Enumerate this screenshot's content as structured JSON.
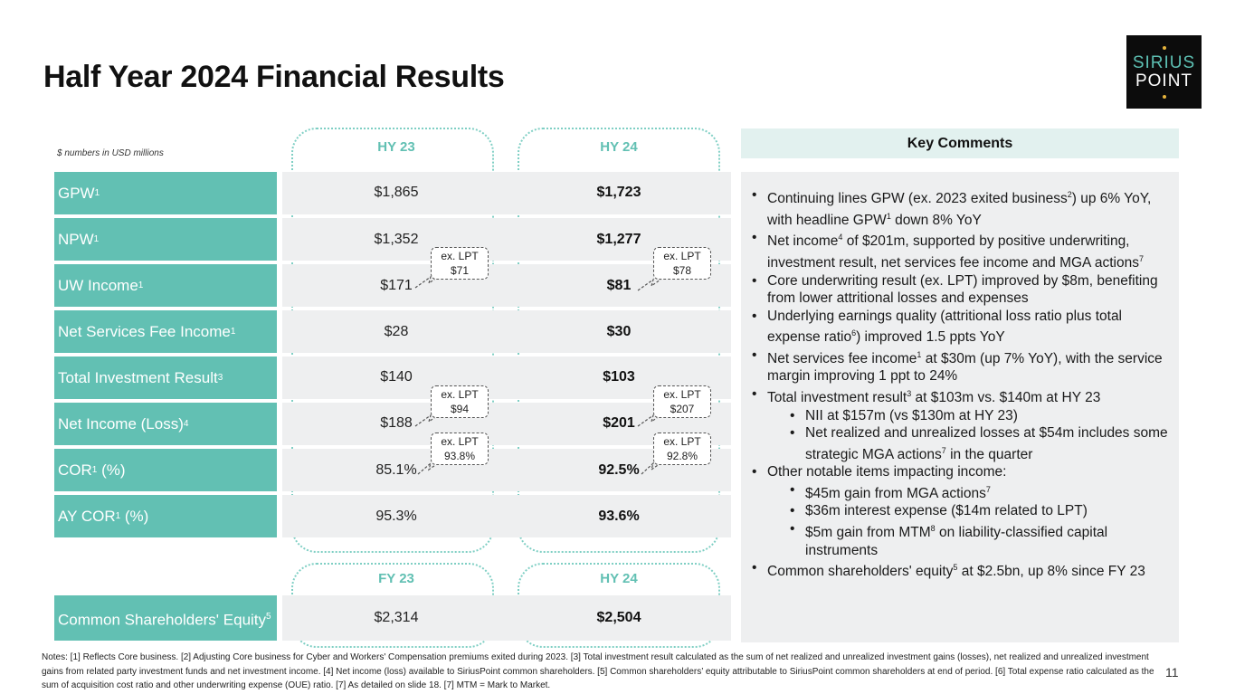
{
  "title": "Half Year 2024 Financial Results",
  "logo": {
    "line1": "SIRIUS",
    "line2": "POINT"
  },
  "units_note": "$ numbers in USD millions",
  "col_heads_top": {
    "a": "HY 23",
    "b": "HY 24"
  },
  "col_heads_bottom": {
    "a": "FY 23",
    "b": "HY 24"
  },
  "rows": [
    {
      "label": "GPW",
      "sup": "1",
      "a": "$1,865",
      "b": "$1,723"
    },
    {
      "label": "NPW",
      "sup": "1",
      "a": "$1,352",
      "b": "$1,277"
    },
    {
      "label": "UW Income",
      "sup": "1",
      "a": "$171",
      "b": "$81"
    },
    {
      "label": "Net Services Fee Income",
      "sup": "1",
      "a": "$28",
      "b": "$30"
    },
    {
      "label": "Total Investment Result",
      "sup": "3",
      "a": "$140",
      "b": "$103"
    },
    {
      "label": "Net Income (Loss)",
      "sup": "4",
      "a": "$188",
      "b": "$201"
    },
    {
      "label": "COR",
      "sup": "1",
      "label_suffix": " (%)",
      "a": "85.1%",
      "b": "92.5%"
    },
    {
      "label": "AY COR",
      "sup": "1",
      "label_suffix": " (%)",
      "a": "95.3%",
      "b": "93.6%"
    }
  ],
  "equity_row": {
    "label": "Common Shareholders' Equity",
    "sup": "5",
    "a": "$2,314",
    "b": "$2,504"
  },
  "callouts": {
    "uw_a": {
      "l1": "ex. LPT",
      "l2": "$71"
    },
    "uw_b": {
      "l1": "ex. LPT",
      "l2": "$78"
    },
    "ni_a": {
      "l1": "ex. LPT",
      "l2": "$94"
    },
    "ni_b": {
      "l1": "ex. LPT",
      "l2": "$207"
    },
    "cor_a": {
      "l1": "ex. LPT",
      "l2": "93.8%"
    },
    "cor_b": {
      "l1": "ex. LPT",
      "l2": "92.8%"
    }
  },
  "key_comments": {
    "heading": "Key Comments",
    "b1": {
      "t1": "Continuing lines GPW (ex. 2023 exited business",
      "s1": "2",
      "t2": ") up 6% YoY, with headline GPW",
      "s2": "1",
      "t3": " down 8% YoY"
    },
    "b2": {
      "t1": "Net income",
      "s1": "4",
      "t2": " of $201m, supported by positive underwriting, investment result, net services fee income and MGA actions",
      "s2": "7"
    },
    "b3": "Core underwriting result (ex. LPT) improved by $8m, benefiting from lower attritional losses and expenses",
    "b4": {
      "t1": "Underlying earnings quality (attritional loss ratio plus total expense ratio",
      "s1": "6",
      "t2": ") improved 1.5 ppts YoY"
    },
    "b5": {
      "t1": "Net services fee income",
      "s1": "1",
      "t2": " at $30m (up 7% YoY), with the service margin improving 1 ppt to 24%"
    },
    "b6": {
      "t1": "Total investment result",
      "s1": "3",
      "t2": " at $103m vs. $140m at HY 23"
    },
    "b6a": "NII at $157m (vs $130m at HY 23)",
    "b6b": {
      "t1": "Net realized and unrealized losses at $54m includes some strategic MGA actions",
      "s1": "7",
      "t2": " in the quarter"
    },
    "b7": "Other notable items impacting income:",
    "b7a": {
      "t1": "$45m gain from MGA actions",
      "s1": "7"
    },
    "b7b": "$36m interest expense ($14m related to LPT)",
    "b7c": {
      "t1": "$5m gain from MTM",
      "s1": "8",
      "t2": " on liability-classified capital instruments"
    },
    "b8": {
      "t1": "Common shareholders' equity",
      "s1": "5",
      "t2": " at $2.5bn, up 8% since FY 23"
    }
  },
  "notes": "Notes: [1] Reflects Core business.  [2] Adjusting Core business for Cyber and Workers' Compensation premiums exited during 2023. [3] Total investment result calculated as the sum of net realized and unrealized investment gains (losses), net realized and unrealized investment gains from related party investment funds and net investment income. [4] Net income (loss) available to SiriusPoint common shareholders. [5] Common shareholders’ equity attributable to SiriusPoint common shareholders at end of period. [6] Total expense ratio calculated as the sum of acquisition cost ratio and other underwriting expense (OUE) ratio. [7] As detailed on slide 18. [7] MTM = Mark to Market.",
  "page_number": "11",
  "colors": {
    "teal": "#62c0b3",
    "light_teal": "#e2f1ef",
    "grey": "#eeeff0"
  }
}
